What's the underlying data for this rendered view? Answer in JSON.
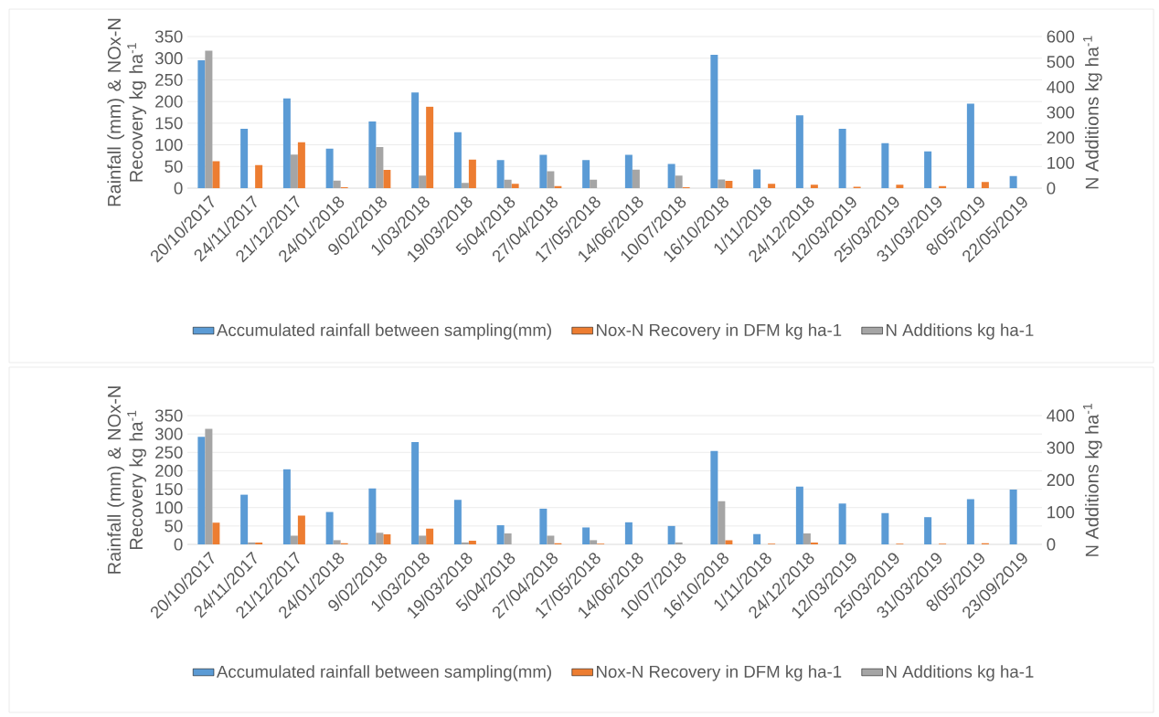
{
  "chart_data": [
    {
      "type": "bar",
      "ylabel": "Rainfall (mm) & NOx-N Recovery kg ha$^{-1}$",
      "y2label": "N Additions kg ha$^{-1}$",
      "categories": [
        "20/10/2017",
        "24/11/2017",
        "21/12/2017",
        "24/01/2018",
        "9/02/2018",
        "1/03/2018",
        "19/03/2018",
        "5/04/2018",
        "27/04/2018",
        "17/05/2018",
        "14/06/2018",
        "10/07/2018",
        "16/10/2018",
        "1/11/2018",
        "24/12/2018",
        "12/03/2019",
        "25/03/2019",
        "31/03/2019",
        "8/05/2019",
        "22/05/2019"
      ],
      "series": [
        {
          "name": "Accumulated rainfall between sampling(mm)",
          "color": "#5b9bd5",
          "values": [
            295,
            137,
            207,
            91,
            154,
            221,
            129,
            65,
            77,
            65,
            77,
            56,
            308,
            43,
            168,
            137,
            104,
            85,
            195,
            28
          ]
        },
        {
          "name": "Nox-N Recovery in DFM kg ha-1",
          "color": "#ed7d31",
          "values": [
            62,
            53,
            106,
            2,
            42,
            188,
            66,
            10,
            5,
            null,
            null,
            2,
            17,
            10,
            8,
            3,
            8,
            5,
            14,
            null
          ]
        },
        {
          "name": "N Additions kg ha-1",
          "color": "#a5a5a5",
          "axis": "y2",
          "values": [
            544,
            null,
            133,
            30,
            163,
            50,
            21,
            33,
            67,
            33,
            73,
            50,
            34,
            null,
            null,
            null,
            null,
            null,
            null,
            null
          ]
        }
      ],
      "ylim": [
        0,
        350
      ],
      "yticks": [
        0,
        50,
        100,
        150,
        200,
        250,
        300,
        350
      ],
      "y2lim": [
        0,
        600
      ],
      "y2ticks": [
        0,
        100,
        200,
        300,
        400,
        500,
        600
      ],
      "grid": "y",
      "legend": "bottom"
    },
    {
      "type": "bar",
      "ylabel": "Rainfall (mm) & NOx-N Recovery kg ha$^{-1}$",
      "y2label": "N Additions kg ha$^{-1}$",
      "categories": [
        "20/10/2017",
        "24/11/2017",
        "21/12/2017",
        "24/01/2018",
        "9/02/2018",
        "1/03/2018",
        "19/03/2018",
        "5/04/2018",
        "27/04/2018",
        "17/05/2018",
        "14/06/2018",
        "10/07/2018",
        "16/10/2018",
        "1/11/2018",
        "24/12/2018",
        "12/03/2019",
        "25/03/2019",
        "31/03/2019",
        "8/05/2019",
        "23/09/2019"
      ],
      "series": [
        {
          "name": "Accumulated rainfall between sampling(mm)",
          "color": "#5b9bd5",
          "values": [
            292,
            135,
            204,
            88,
            152,
            278,
            121,
            52,
            97,
            46,
            60,
            50,
            254,
            28,
            157,
            111,
            85,
            74,
            123,
            149
          ]
        },
        {
          "name": "Nox-N Recovery in DFM kg ha-1",
          "color": "#ed7d31",
          "values": [
            59,
            5,
            78,
            3,
            27,
            43,
            10,
            null,
            3,
            2,
            null,
            null,
            11,
            2,
            5,
            null,
            2,
            2,
            3,
            null
          ]
        },
        {
          "name": "N Additions kg ha-1",
          "color": "#a5a5a5",
          "axis": "y2",
          "values": [
            359,
            6,
            27,
            13,
            36,
            27,
            6,
            34,
            27,
            13,
            null,
            6,
            134,
            null,
            34,
            null,
            null,
            null,
            null,
            null
          ]
        }
      ],
      "ylim": [
        0,
        350
      ],
      "yticks": [
        0,
        50,
        100,
        150,
        200,
        250,
        300,
        350
      ],
      "y2lim": [
        0,
        400
      ],
      "y2ticks": [
        0,
        100,
        200,
        300,
        400
      ],
      "grid": "y",
      "legend": "bottom"
    }
  ]
}
